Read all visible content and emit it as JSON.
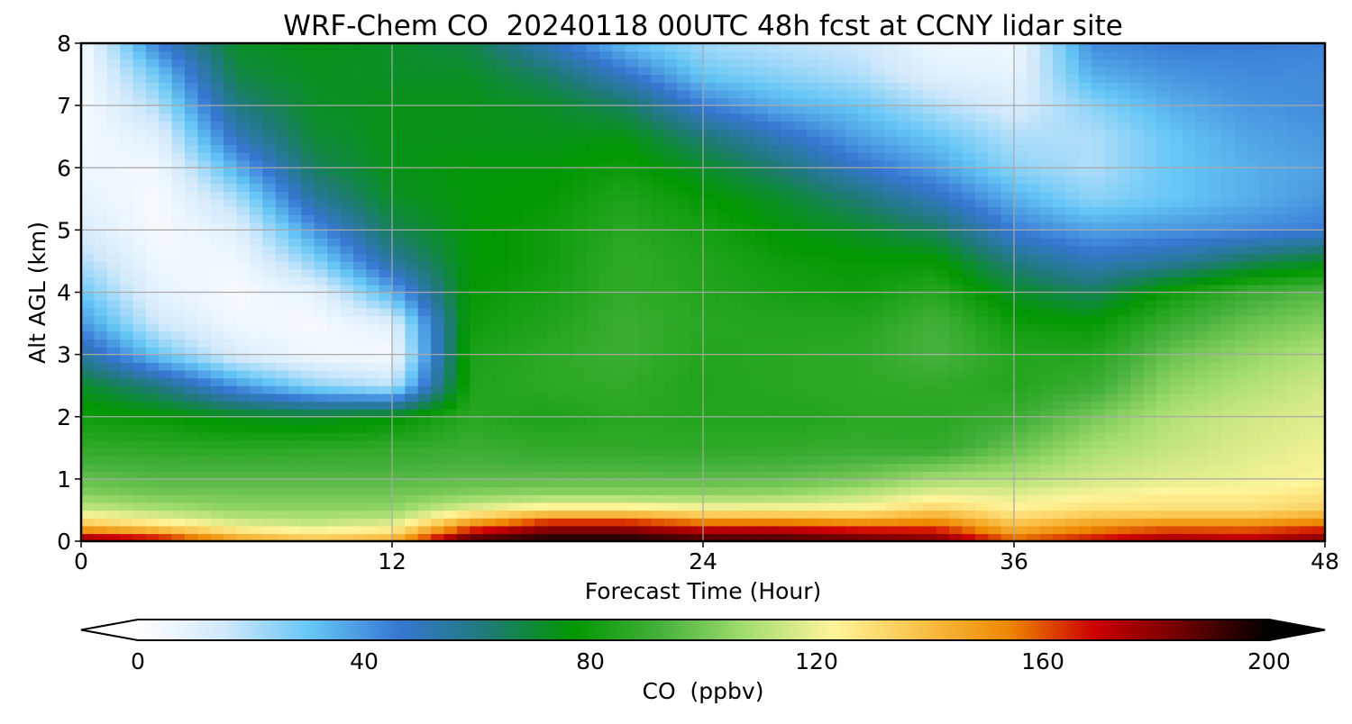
{
  "chart_data": {
    "type": "heatmap",
    "title": "WRF-Chem CO  20240118 00UTC 48h fcst at CCNY lidar site",
    "xlabel": "Forecast Time (Hour)",
    "ylabel": "Alt AGL (km)",
    "xlim": [
      0,
      48
    ],
    "ylim": [
      0,
      8
    ],
    "x_ticks": [
      0,
      12,
      24,
      36,
      48
    ],
    "y_ticks": [
      0,
      1,
      2,
      3,
      4,
      5,
      6,
      7,
      8
    ],
    "grid": true,
    "x": [
      0,
      3,
      6,
      9,
      12,
      15,
      18,
      21,
      24,
      27,
      30,
      33,
      36,
      39,
      42,
      45,
      48
    ],
    "y": [
      0,
      0.25,
      0.5,
      0.75,
      1,
      1.5,
      2,
      2.5,
      3,
      3.5,
      4,
      4.5,
      5,
      5.5,
      6,
      6.5,
      7,
      7.5,
      8
    ],
    "z": [
      [
        185,
        175,
        150,
        140,
        145,
        195,
        200,
        200,
        195,
        195,
        190,
        185,
        160,
        170,
        180,
        175,
        185
      ],
      [
        140,
        130,
        120,
        115,
        120,
        155,
        175,
        175,
        165,
        165,
        160,
        160,
        140,
        150,
        155,
        155,
        160
      ],
      [
        115,
        110,
        105,
        105,
        105,
        120,
        130,
        130,
        125,
        125,
        125,
        135,
        125,
        130,
        130,
        130,
        135
      ],
      [
        103,
        100,
        100,
        100,
        100,
        103,
        105,
        105,
        105,
        106,
        112,
        120,
        118,
        122,
        125,
        125,
        128
      ],
      [
        97,
        95,
        95,
        95,
        95,
        96,
        96,
        96,
        96,
        97,
        100,
        108,
        110,
        115,
        118,
        120,
        123
      ],
      [
        88,
        87,
        86,
        87,
        88,
        90,
        88,
        88,
        87,
        88,
        89,
        88,
        98,
        108,
        113,
        117,
        120
      ],
      [
        80,
        78,
        74,
        72,
        76,
        86,
        83,
        86,
        85,
        84,
        86,
        86,
        90,
        100,
        110,
        115,
        118
      ],
      [
        72,
        60,
        40,
        25,
        18,
        84,
        87,
        88,
        84,
        86,
        87,
        88,
        85,
        90,
        104,
        110,
        115
      ],
      [
        55,
        30,
        12,
        5,
        3,
        83,
        87,
        90,
        85,
        86,
        87,
        93,
        85,
        85,
        98,
        105,
        110
      ],
      [
        40,
        15,
        5,
        3,
        10,
        80,
        84,
        90,
        86,
        85,
        85,
        92,
        80,
        78,
        90,
        98,
        103
      ],
      [
        30,
        8,
        3,
        8,
        35,
        78,
        82,
        88,
        85,
        82,
        80,
        86,
        72,
        65,
        80,
        90,
        95
      ],
      [
        20,
        5,
        5,
        25,
        55,
        76,
        80,
        88,
        84,
        80,
        78,
        78,
        60,
        50,
        55,
        65,
        72
      ],
      [
        12,
        3,
        10,
        40,
        66,
        76,
        80,
        86,
        82,
        76,
        72,
        65,
        45,
        38,
        40,
        42,
        45
      ],
      [
        8,
        3,
        20,
        55,
        72,
        76,
        78,
        84,
        78,
        72,
        62,
        50,
        35,
        25,
        30,
        35,
        40
      ],
      [
        5,
        5,
        35,
        65,
        74,
        76,
        76,
        80,
        72,
        62,
        48,
        38,
        25,
        20,
        30,
        35,
        38
      ],
      [
        4,
        10,
        50,
        70,
        74,
        74,
        74,
        75,
        62,
        50,
        38,
        30,
        20,
        20,
        30,
        37,
        40
      ],
      [
        3,
        20,
        60,
        72,
        74,
        74,
        72,
        65,
        45,
        35,
        30,
        20,
        12,
        25,
        35,
        40,
        42
      ],
      [
        3,
        30,
        68,
        73,
        72,
        72,
        64,
        48,
        30,
        25,
        20,
        10,
        8,
        35,
        40,
        42,
        42
      ],
      [
        3,
        45,
        72,
        74,
        72,
        68,
        50,
        32,
        22,
        18,
        15,
        6,
        5,
        42,
        45,
        45,
        44
      ]
    ],
    "colorbar": {
      "label": "CO  (ppbv)",
      "min": 0,
      "max": 200,
      "ticks": [
        0,
        40,
        80,
        120,
        160,
        200
      ],
      "extend": "both",
      "colors": [
        "#ffffff",
        "#cfe8fb",
        "#64c5f5",
        "#3677d2",
        "#1f7a78",
        "#009700",
        "#45b13b",
        "#a4dd70",
        "#fff59a",
        "#f9c148",
        "#ee8800",
        "#cc0000",
        "#6e0000",
        "#000000"
      ]
    }
  }
}
